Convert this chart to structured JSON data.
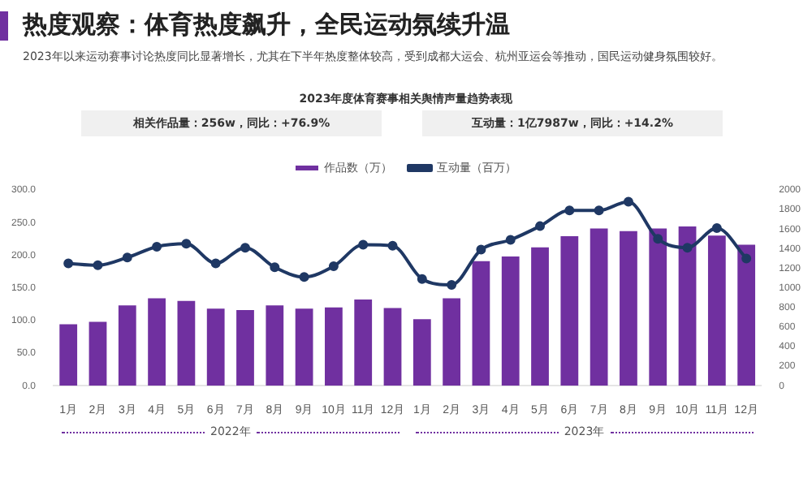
{
  "chart_data": {
    "type": "bar",
    "title": "热度观察：体育热度飙升，全民运动氛续升温",
    "subtitle": "2023年以来运动赛事讨论热度同比显著增长，尤其在下半年热度整体较高，受到成都大运会、杭州亚运会等推动，国民运动健身氛围较好。",
    "annotations": [
      "2023年度体育赛事相关舆情声量趋势表现",
      "相关作品量：256w，同比：+76.9%",
      "互动量：1亿7987w，同比：+14.2%",
      "2022年",
      "2023年"
    ],
    "categories": [
      "1月",
      "2月",
      "3月",
      "4月",
      "5月",
      "6月",
      "7月",
      "8月",
      "9月",
      "10月",
      "11月",
      "12月",
      "1月",
      "2月",
      "3月",
      "4月",
      "5月",
      "6月",
      "7月",
      "8月",
      "9月",
      "10月",
      "11月",
      "12月"
    ],
    "series": [
      {
        "name": "作品数（万）",
        "color": "#7030a0",
        "values": [
          94,
          98,
          123,
          134,
          130,
          118,
          116,
          123,
          118,
          120,
          132,
          119,
          102,
          134,
          191,
          198,
          212,
          229,
          241,
          237,
          241,
          244,
          230,
          216
        ]
      },
      {
        "name": "互动量（百万）",
        "type": "line",
        "axis": "y2",
        "color": "#1f3864",
        "values": [
          1250,
          1230,
          1310,
          1420,
          1450,
          1250,
          1410,
          1210,
          1110,
          1220,
          1440,
          1430,
          1090,
          1030,
          1390,
          1490,
          1630,
          1790,
          1790,
          1880,
          1500,
          1410,
          1610,
          1300
        ]
      }
    ],
    "ylim": [
      0,
      300
    ],
    "yticks": [
      {
        "value": 0,
        "label": "0.0"
      },
      {
        "value": 50,
        "label": "50.0"
      },
      {
        "value": 100,
        "label": "100.0"
      },
      {
        "value": 150,
        "label": "150.0"
      },
      {
        "value": 200,
        "label": "200.0"
      },
      {
        "value": 250,
        "label": "250.0"
      },
      {
        "value": 300,
        "label": "300.0"
      }
    ],
    "y2lim": [
      0,
      2000
    ],
    "y2ticks": [
      0,
      200,
      400,
      600,
      800,
      1000,
      1200,
      1400,
      1600,
      1800,
      2000
    ],
    "legend": "top",
    "marker": "circle",
    "grid": false
  }
}
